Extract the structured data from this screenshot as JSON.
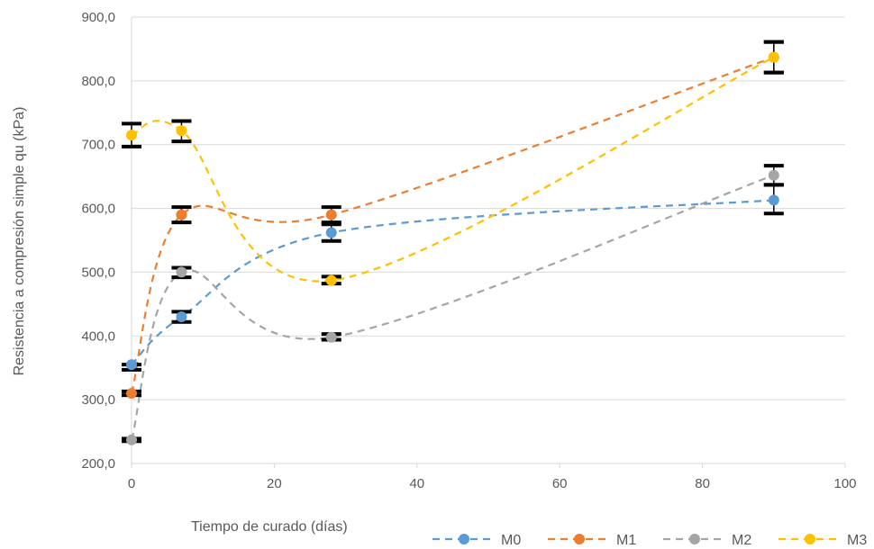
{
  "chart_data": {
    "type": "scatter",
    "title": "",
    "xlabel": "Tiempo de curado (días)",
    "ylabel": "Resistencia a compresión simple qu (kPa)",
    "xlim": [
      0,
      100
    ],
    "ylim": [
      200,
      900
    ],
    "xticks": [
      0,
      20,
      40,
      60,
      80,
      100
    ],
    "xtick_labels": [
      "0",
      "20",
      "40",
      "60",
      "80",
      "100"
    ],
    "yticks": [
      200,
      300,
      400,
      500,
      600,
      700,
      800,
      900
    ],
    "ytick_labels": [
      "200,0",
      "300,0",
      "400,0",
      "500,0",
      "600,0",
      "700,0",
      "800,0",
      "900,0"
    ],
    "grid": "horizontal",
    "legend_position": "bottom-right",
    "line_style": "dashed smoothed trendline",
    "x": [
      0,
      7,
      28,
      90
    ],
    "series": [
      {
        "name": "M0",
        "color": "#5b9bd5",
        "values": [
          355,
          430,
          562,
          613
        ],
        "error_low": [
          347,
          422,
          549,
          592
        ],
        "error_high": [
          355,
          438,
          575,
          637
        ]
      },
      {
        "name": "M1",
        "color": "#ed7d31",
        "values": [
          310,
          590,
          590,
          837
        ],
        "error_low": [
          307,
          578,
          578,
          813
        ],
        "error_high": [
          313,
          602,
          602,
          861
        ]
      },
      {
        "name": "M2",
        "color": "#a5a5a5",
        "values": [
          237,
          500,
          398,
          652
        ],
        "error_low": [
          235,
          492,
          394,
          637
        ],
        "error_high": [
          239,
          507,
          403,
          667
        ]
      },
      {
        "name": "M3",
        "color": "#ffc000",
        "values": [
          715,
          722,
          487,
          837
        ],
        "error_low": [
          697,
          705,
          482,
          813
        ],
        "error_high": [
          733,
          737,
          493,
          861
        ]
      }
    ]
  }
}
